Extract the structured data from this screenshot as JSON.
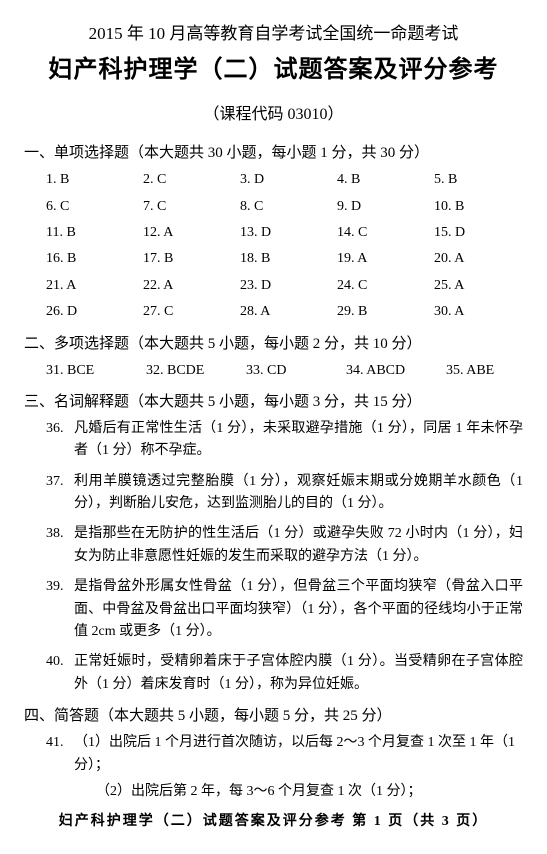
{
  "header": {
    "line1": "2015 年 10 月高等教育自学考试全国统一命题考试",
    "line2": "妇产科护理学（二）试题答案及评分参考",
    "course": "（课程代码  03010）"
  },
  "section1": {
    "title": "一、单项选择题（本大题共 30 小题，每小题 1 分，共 30 分）",
    "items": [
      {
        "n": "1.",
        "a": "B"
      },
      {
        "n": "2.",
        "a": "C"
      },
      {
        "n": "3.",
        "a": "D"
      },
      {
        "n": "4.",
        "a": "B"
      },
      {
        "n": "5.",
        "a": "B"
      },
      {
        "n": "6.",
        "a": "C"
      },
      {
        "n": "7.",
        "a": "C"
      },
      {
        "n": "8.",
        "a": "C"
      },
      {
        "n": "9.",
        "a": "D"
      },
      {
        "n": "10.",
        "a": "B"
      },
      {
        "n": "11.",
        "a": "B"
      },
      {
        "n": "12.",
        "a": "A"
      },
      {
        "n": "13.",
        "a": "D"
      },
      {
        "n": "14.",
        "a": "C"
      },
      {
        "n": "15.",
        "a": "D"
      },
      {
        "n": "16.",
        "a": "B"
      },
      {
        "n": "17.",
        "a": "B"
      },
      {
        "n": "18.",
        "a": "B"
      },
      {
        "n": "19.",
        "a": "A"
      },
      {
        "n": "20.",
        "a": "A"
      },
      {
        "n": "21.",
        "a": "A"
      },
      {
        "n": "22.",
        "a": "A"
      },
      {
        "n": "23.",
        "a": "D"
      },
      {
        "n": "24.",
        "a": "C"
      },
      {
        "n": "25.",
        "a": "A"
      },
      {
        "n": "26.",
        "a": "D"
      },
      {
        "n": "27.",
        "a": "C"
      },
      {
        "n": "28.",
        "a": "A"
      },
      {
        "n": "29.",
        "a": "B"
      },
      {
        "n": "30.",
        "a": "A"
      }
    ]
  },
  "section2": {
    "title": "二、多项选择题（本大题共 5 小题，每小题 2 分，共 10 分）",
    "items": [
      {
        "n": "31.",
        "a": "BCE"
      },
      {
        "n": "32.",
        "a": "BCDE"
      },
      {
        "n": "33.",
        "a": "CD"
      },
      {
        "n": "34.",
        "a": "ABCD"
      },
      {
        "n": "35.",
        "a": "ABE"
      }
    ]
  },
  "section3": {
    "title": "三、名词解释题（本大题共 5 小题，每小题 3 分，共 15 分）",
    "items": [
      {
        "n": "36.",
        "t": "凡婚后有正常性生活（1 分），未采取避孕措施（1 分），同居 1 年未怀孕者（1 分）称不孕症。"
      },
      {
        "n": "37.",
        "t": "利用羊膜镜透过完整胎膜（1 分），观察妊娠末期或分娩期羊水颜色（1 分），判断胎儿安危，达到监测胎儿的目的（1 分）。"
      },
      {
        "n": "38.",
        "t": "是指那些在无防护的性生活后（1 分）或避孕失败 72 小时内（1 分），妇女为防止非意愿性妊娠的发生而采取的避孕方法（1 分）。"
      },
      {
        "n": "39.",
        "t": "是指骨盆外形属女性骨盆（1 分），但骨盆三个平面均狭窄（骨盆入口平面、中骨盆及骨盆出口平面均狭窄）（1 分），各个平面的径线均小于正常值 2cm 或更多（1 分）。"
      },
      {
        "n": "40.",
        "t": "正常妊娠时，受精卵着床于子宫体腔内膜（1 分）。当受精卵在子宫体腔外（1 分）着床发育时（1 分），称为异位妊娠。"
      }
    ]
  },
  "section4": {
    "title": "四、简答题（本大题共 5 小题，每小题 5 分，共 25 分）",
    "q41": {
      "n": "41.",
      "sub1": "（1）出院后 1 个月进行首次随访，以后每 2～3 个月复查 1 次至 1 年（1 分）；",
      "sub2": "（2）出院后第 2 年，每 3～6 个月复查 1 次（1 分）；"
    }
  },
  "footer": "妇产科护理学（二）试题答案及评分参考  第 1 页（共 3 页）"
}
